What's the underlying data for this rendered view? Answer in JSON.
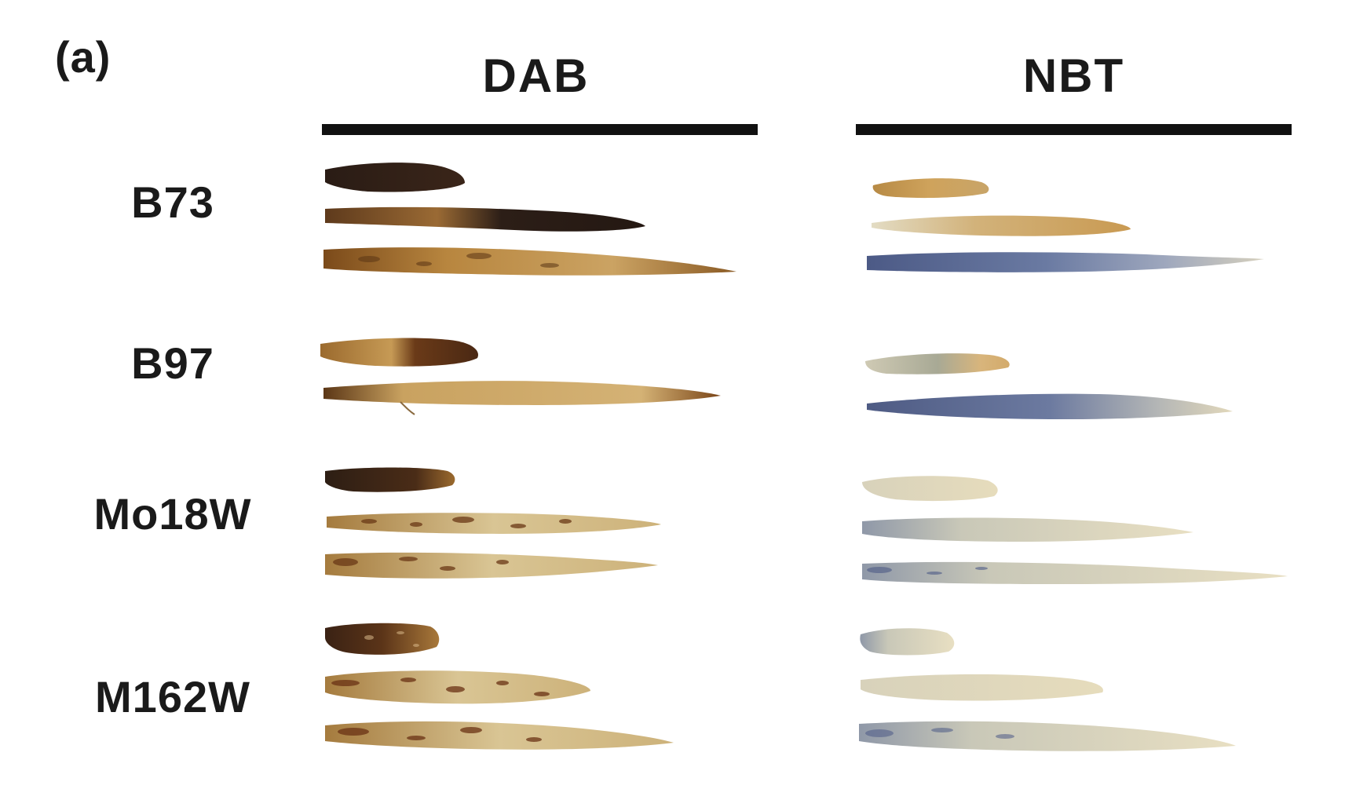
{
  "panel": {
    "label": "(a)"
  },
  "columns": [
    {
      "label": "DAB"
    },
    {
      "label": "NBT"
    }
  ],
  "rows": [
    {
      "label": "B73"
    },
    {
      "label": "B97"
    },
    {
      "label": "Mo18W"
    },
    {
      "label": "M162W"
    }
  ],
  "colors": {
    "dab_dark": "#2b1d16",
    "dab_brown": "#7a4a1c",
    "dab_tan": "#cfa55e",
    "dab_pale": "#ddc99a",
    "nbt_tan": "#c99a4e",
    "nbt_pale": "#e3d7b2",
    "nbt_blue": "#5a6a92",
    "rule": "#111111"
  }
}
